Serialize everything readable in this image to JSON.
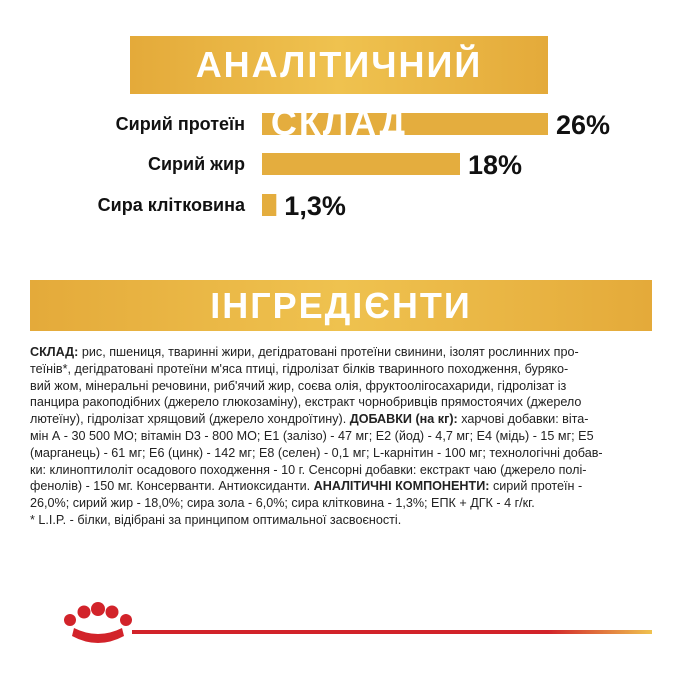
{
  "chart_data": {
    "type": "bar",
    "title": "АНАЛІТИЧНИЙ СКЛАД",
    "categories": [
      "Сирий протеїн",
      "Сирий жир",
      "Сира клітковина"
    ],
    "values": [
      26,
      18,
      1.3
    ],
    "value_labels": [
      "26%",
      "18%",
      "1,3%"
    ],
    "color": "#e4ad3e"
  },
  "ingredients": {
    "title": "ІНГРЕДІЄНТИ",
    "lines": [
      [
        {
          "text": "СКЛАД:",
          "bold": true
        },
        {
          "text": " рис, пшениця, тваринні жири, дегідратовані протеїни свинини, ізолят рослинних про-"
        }
      ],
      [
        {
          "text": "теїнів*, дегідратовані протеїни м'яса птиці, гідролізат білків тваринного походження, буряко-"
        }
      ],
      [
        {
          "text": "вий жом, мінеральні речовини, риб'ячий жир, соєва олія, фруктоолігосахариди, гідролізат із"
        }
      ],
      [
        {
          "text": "панцира ракоподібних (джерело глюкозаміну), екстракт чорнобривців прямостоячих (джерело"
        }
      ],
      [
        {
          "text": "лютеїну), гідролізат хрящовий (джерело хондроїтину). "
        },
        {
          "text": "ДОБАВКИ (на кг):",
          "bold": true
        },
        {
          "text": " харчові добавки: віта-"
        }
      ],
      [
        {
          "text": "мін А - 30 500 МО; вітамін D3 - 800 МО; Е1 (залізо) - 47 мг; Е2 (йод) - 4,7 мг; Е4 (мідь) - 15 мг; Е5"
        }
      ],
      [
        {
          "text": "(марганець) - 61 мг; Е6 (цинк) - 142 мг; Е8 (селен) - 0,1 мг; L-карнітин - 100 мг; технологічні добав-"
        }
      ],
      [
        {
          "text": "ки: клиноптилоліт осадового походження - 10 г. Сенсорні добавки: екстракт чаю (джерело полі-"
        }
      ],
      [
        {
          "text": "фенолів) - 150 мг. Консерванти. Антиоксиданти. "
        },
        {
          "text": "АНАЛІТИЧНІ КОМПОНЕНТИ:",
          "bold": true
        },
        {
          "text": " сирий протеїн -"
        }
      ],
      [
        {
          "text": "26,0%; сирий жир - 18,0%; сира зола - 6,0%; сира клітковина - 1,3%; ЕПК + ДГК - 4 г/кг."
        }
      ],
      [
        {
          "text": "* L.I.P. - білки, відібрані за принципом оптимальної засвоєності."
        }
      ]
    ]
  }
}
